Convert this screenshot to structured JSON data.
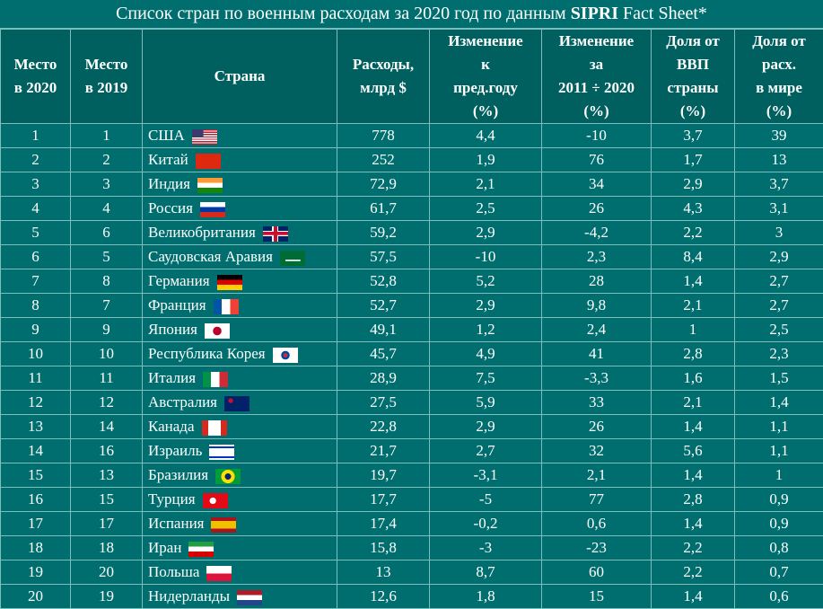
{
  "title": {
    "before": "Список стран по военным расходам за 2020 год по данным ",
    "bold": "SIPRI",
    "after": " Fact Sheet*"
  },
  "table": {
    "header": [
      [
        "Место",
        "в 2020"
      ],
      [
        "Место",
        "в 2019"
      ],
      [
        "Страна"
      ],
      [
        "Расходы,",
        "млрд $"
      ],
      [
        "Изменение",
        "к",
        "пред.году",
        "(%)"
      ],
      [
        "Изменение",
        "за",
        "2011 ÷ 2020",
        "(%)"
      ],
      [
        "Доля от",
        "ВВП",
        "страны",
        "(%)"
      ],
      [
        "Доля от",
        "расх.",
        "в мире",
        "(%)"
      ]
    ],
    "rows": [
      [
        "1",
        "1",
        "США",
        "778",
        "4,4",
        "-10",
        "3,7",
        "39"
      ],
      [
        "2",
        "2",
        "Китай",
        "252",
        "1,9",
        "76",
        "1,7",
        "13"
      ],
      [
        "3",
        "3",
        "Индия",
        "72,9",
        "2,1",
        "34",
        "2,9",
        "3,7"
      ],
      [
        "4",
        "4",
        "Россия",
        "61,7",
        "2,5",
        "26",
        "4,3",
        "3,1"
      ],
      [
        "5",
        "6",
        "Великобритания",
        "59,2",
        "2,9",
        "-4,2",
        "2,2",
        "3"
      ],
      [
        "6",
        "5",
        "Саудовская Аравия",
        "57,5",
        "-10",
        "2,3",
        "8,4",
        "2,9"
      ],
      [
        "7",
        "8",
        "Германия",
        "52,8",
        "5,2",
        "28",
        "1,4",
        "2,7"
      ],
      [
        "8",
        "7",
        "Франция",
        "52,7",
        "2,9",
        "9,8",
        "2,1",
        "2,7"
      ],
      [
        "9",
        "9",
        "Япония",
        "49,1",
        "1,2",
        "2,4",
        "1",
        "2,5"
      ],
      [
        "10",
        "10",
        "Республика Корея",
        "45,7",
        "4,9",
        "41",
        "2,8",
        "2,3"
      ],
      [
        "11",
        "11",
        "Италия",
        "28,9",
        "7,5",
        "-3,3",
        "1,6",
        "1,5"
      ],
      [
        "12",
        "12",
        "Австралия",
        "27,5",
        "5,9",
        "33",
        "2,1",
        "1,4"
      ],
      [
        "13",
        "14",
        "Канада",
        "22,8",
        "2,9",
        "26",
        "1,4",
        "1,1"
      ],
      [
        "14",
        "16",
        "Израиль",
        "21,7",
        "2,7",
        "32",
        "5,6",
        "1,1"
      ],
      [
        "15",
        "13",
        "Бразилия",
        "19,7",
        "-3,1",
        "2,1",
        "1,4",
        "1"
      ],
      [
        "16",
        "15",
        "Турция",
        "17,7",
        "-5",
        "77",
        "2,8",
        "0,9"
      ],
      [
        "17",
        "17",
        "Испания",
        "17,4",
        "-0,2",
        "0,6",
        "1,4",
        "0,9"
      ],
      [
        "18",
        "18",
        "Иран",
        "15,8",
        "-3",
        "-23",
        "2,2",
        "0,8"
      ],
      [
        "19",
        "20",
        "Польша",
        "13",
        "8,7",
        "60",
        "2,2",
        "0,7"
      ],
      [
        "20",
        "19",
        "Нидерланды",
        "12,6",
        "1,8",
        "15",
        "1,4",
        "0,6"
      ]
    ]
  }
}
